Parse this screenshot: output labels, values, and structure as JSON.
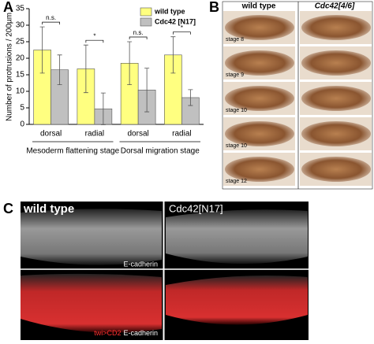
{
  "chart_data": {
    "type": "bar",
    "y_label": "Number of protrusions / 200µm",
    "categories": [
      "dorsal",
      "radial",
      "dorsal",
      "radial"
    ],
    "groups": [
      "Mesoderm flattening stage",
      "Dorsal migration stage"
    ],
    "series": [
      {
        "name": "wild type",
        "color": "#ffff80",
        "values": [
          22.5,
          16.8,
          18.5,
          21.0
        ],
        "errors": [
          7.0,
          7.2,
          6.5,
          5.5
        ]
      },
      {
        "name": "Cdc42 [N17]",
        "color": "#c0c0c0",
        "values": [
          16.5,
          4.7,
          10.4,
          8.1
        ],
        "errors": [
          4.5,
          4.8,
          6.6,
          2.4
        ]
      }
    ],
    "annotations": [
      "n.s.",
      "*",
      "n.s.",
      "*"
    ],
    "ylim": [
      0,
      35
    ],
    "yticks": [
      0,
      5,
      10,
      15,
      20,
      25,
      30,
      35
    ],
    "legend": "upper right"
  },
  "panel_labels": [
    "A",
    "B",
    "C"
  ],
  "panel_b": {
    "columns": [
      "wild type",
      "Cdc42[4/6]"
    ],
    "stages": [
      "stage 8",
      "stage 9",
      "stage 10",
      "stage 10",
      "stage 12"
    ]
  },
  "panel_c": {
    "columns": [
      "wild type",
      "Cdc42[N17]"
    ],
    "top_label": "E-cadherin",
    "bottom_label_red": "twi>CD2",
    "bottom_label_white": "E-cadherin"
  }
}
